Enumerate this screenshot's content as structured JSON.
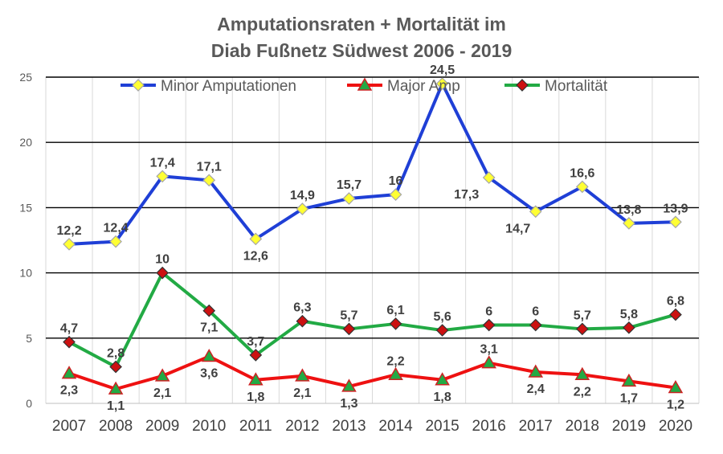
{
  "chart_data": {
    "type": "line",
    "title_lines": [
      "Amputationsraten + Mortalität im",
      "Diab Fußnetz Südwest 2006 - 2019"
    ],
    "categories": [
      "2007",
      "2008",
      "2009",
      "2010",
      "2011",
      "2012",
      "2013",
      "2014",
      "2015",
      "2016",
      "2017",
      "2018",
      "2019",
      "2020"
    ],
    "ylim": [
      0,
      25
    ],
    "yticks": [
      0,
      5,
      10,
      15,
      20,
      25
    ],
    "grid": true,
    "legend_position": "top",
    "series": [
      {
        "name": "Minor Amputationen",
        "line_color": "#1f3fd6",
        "marker": "diamond",
        "marker_fill": "#ffff33",
        "marker_stroke": "#a6a6a6",
        "values": [
          12.2,
          12.4,
          17.4,
          17.1,
          12.6,
          14.9,
          15.7,
          16,
          24.5,
          17.3,
          14.7,
          16.6,
          13.8,
          13.9
        ],
        "labels": [
          "12,2",
          "12,4",
          "17,4",
          "17,1",
          "12,6",
          "14,9",
          "15,7",
          "16",
          "24,5",
          "17,3",
          "14,7",
          "16,6",
          "13,8",
          "13,9"
        ]
      },
      {
        "name": "Major Amp",
        "line_color": "#ee1111",
        "marker": "triangle",
        "marker_fill": "#22aa44",
        "marker_stroke": "#cc2222",
        "values": [
          2.3,
          1.1,
          2.1,
          3.6,
          1.8,
          2.1,
          1.3,
          2.2,
          1.8,
          3.1,
          2.4,
          2.2,
          1.7,
          1.2
        ],
        "labels": [
          "2,3",
          "1,1",
          "2,1",
          "3,6",
          "1,8",
          "2,1",
          "1,3",
          "2,2",
          "1,8",
          "3,1",
          "2,4",
          "2,2",
          "1,7",
          "1,2"
        ]
      },
      {
        "name": "Mortalität",
        "line_color": "#22aa44",
        "marker": "diamond",
        "marker_fill": "#cc1111",
        "marker_stroke": "#333333",
        "values": [
          4.7,
          2.8,
          10,
          7.1,
          3.7,
          6.3,
          5.7,
          6.1,
          5.6,
          6,
          6,
          5.7,
          5.8,
          6.8
        ],
        "labels": [
          "4,7",
          "2,8",
          "10",
          "7,1",
          "3,7",
          "6,3",
          "5,7",
          "6,1",
          "5,6",
          "6",
          "6",
          "5,7",
          "5,8",
          "6,8"
        ]
      }
    ]
  }
}
